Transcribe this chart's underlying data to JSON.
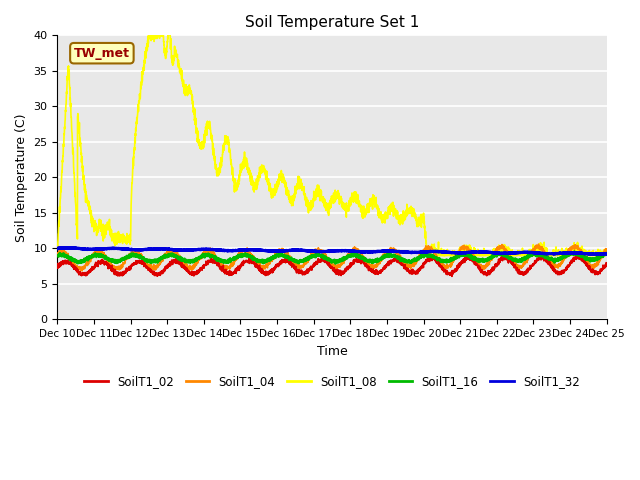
{
  "title": "Soil Temperature Set 1",
  "xlabel": "Time",
  "ylabel": "Soil Temperature (C)",
  "ylim": [
    0,
    40
  ],
  "yticks": [
    0,
    5,
    10,
    15,
    20,
    25,
    30,
    35,
    40
  ],
  "xtick_labels": [
    "Dec 10",
    "Dec 11",
    "Dec 12",
    "Dec 13",
    "Dec 14",
    "Dec 15",
    "Dec 16",
    "Dec 17",
    "Dec 18",
    "Dec 19",
    "Dec 20",
    "Dec 21",
    "Dec 22",
    "Dec 23",
    "Dec 24",
    "Dec 25"
  ],
  "annotation_text": "TW_met",
  "annotation_fg": "#990000",
  "annotation_bg": "#ffffbb",
  "annotation_edge": "#996600",
  "bg_color": "#e8e8e8",
  "series_colors": {
    "SoilT1_02": "#dd0000",
    "SoilT1_04": "#ff8800",
    "SoilT1_08": "#ffff00",
    "SoilT1_16": "#00bb00",
    "SoilT1_32": "#0000dd"
  },
  "title_fontsize": 11,
  "label_fontsize": 9,
  "tick_fontsize": 8
}
